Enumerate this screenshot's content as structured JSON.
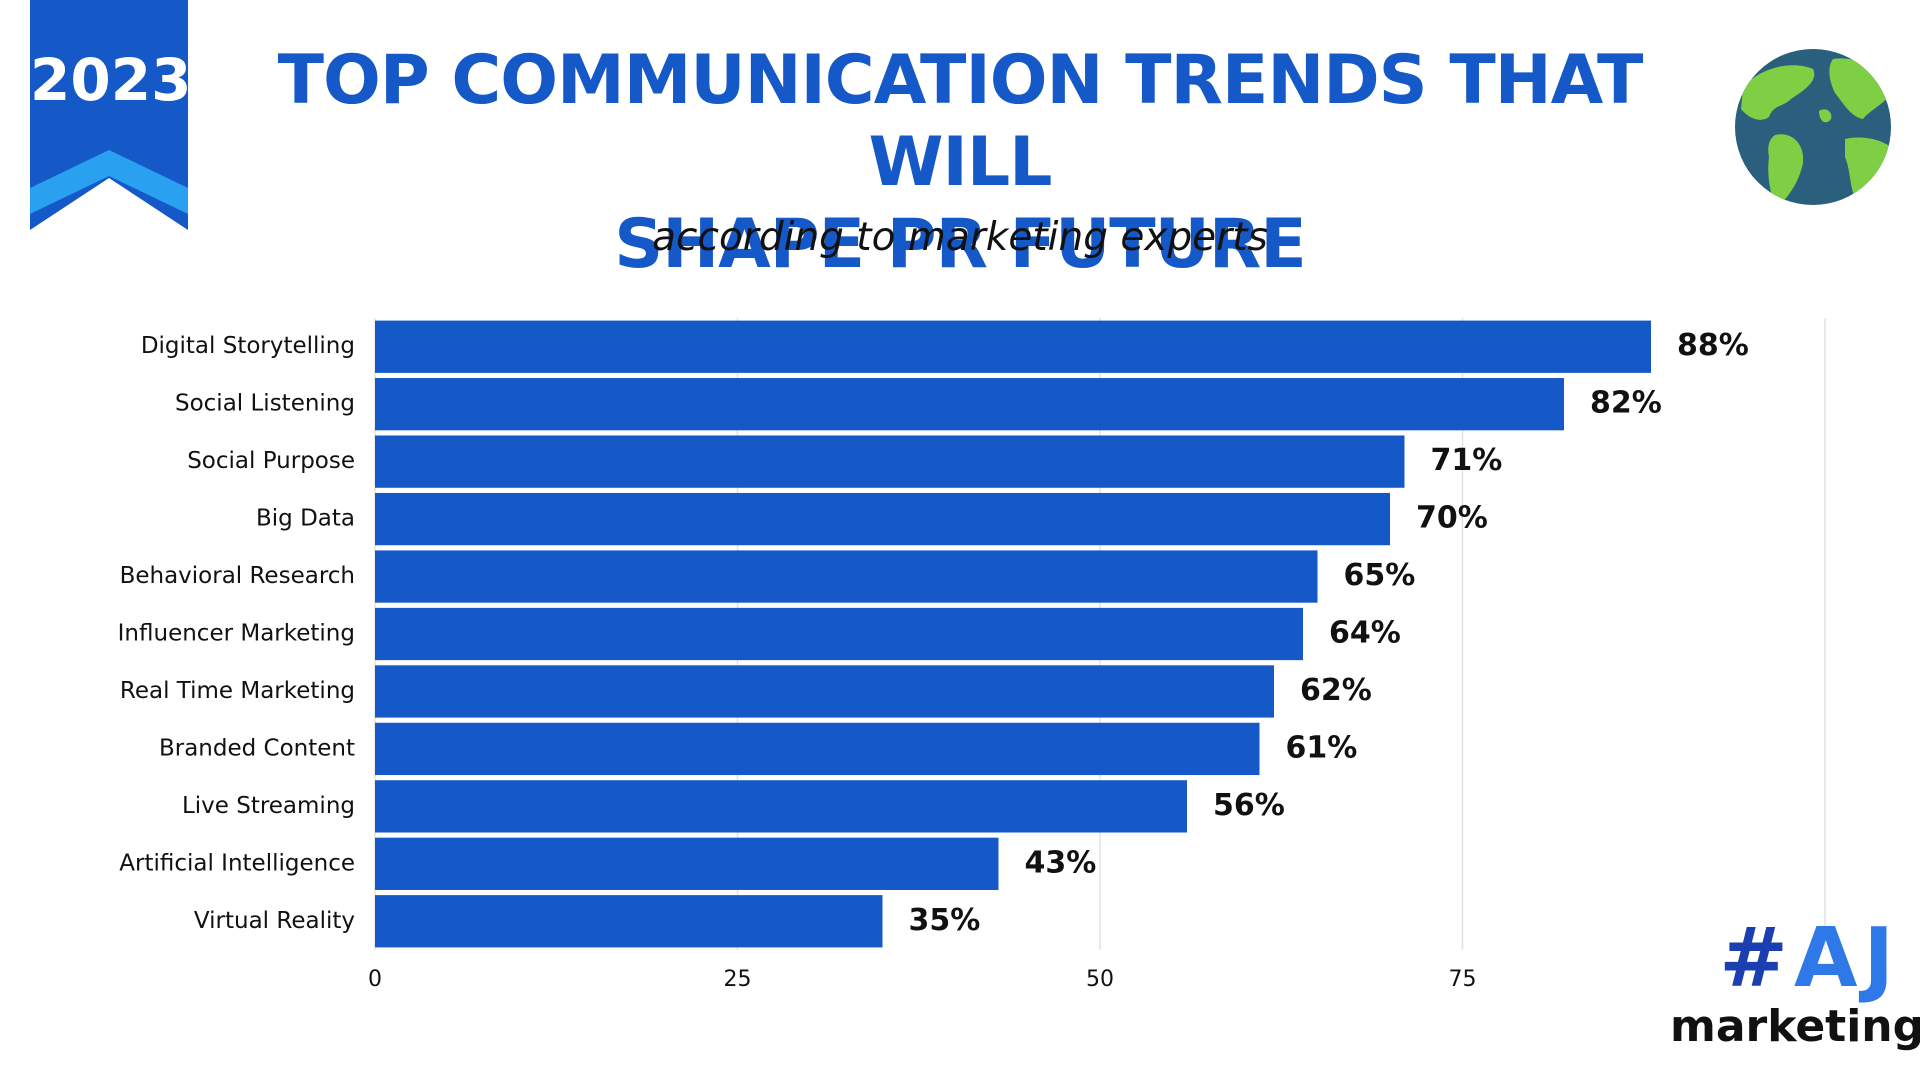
{
  "header": {
    "year_badge": "2023",
    "title_line1": "TOP COMMUNICATION TRENDS THAT WILL",
    "title_line2": "SHAPE PR FUTURE",
    "subtitle": "according to marketing experts"
  },
  "logo": {
    "mark_hash": "#",
    "mark_letters": "AJ",
    "word": "marketing"
  },
  "colors": {
    "bar": "#1558c7",
    "title": "#1558c7",
    "ribbon_dark": "#1558c7",
    "ribbon_light": "#2aa0f0",
    "grid": "#e3e3e3"
  },
  "icons": [
    "globe-icon"
  ],
  "chart_data": {
    "type": "bar",
    "orientation": "horizontal",
    "title": "TOP COMMUNICATION TRENDS THAT WILL SHAPE PR FUTURE",
    "subtitle": "according to marketing experts",
    "categories": [
      "Digital Storytelling",
      "Social Listening",
      "Social Purpose",
      "Big Data",
      "Behavioral Research",
      "Influencer Marketing",
      "Real Time Marketing",
      "Branded Content",
      "Live Streaming",
      "Artificial Intelligence",
      "Virtual Reality"
    ],
    "values": [
      88,
      82,
      71,
      70,
      65,
      64,
      62,
      61,
      56,
      43,
      35
    ],
    "value_labels": [
      "88%",
      "82%",
      "71%",
      "70%",
      "65%",
      "64%",
      "62%",
      "61%",
      "56%",
      "43%",
      "35%"
    ],
    "xticks": [
      "0",
      "25",
      "50",
      "75"
    ],
    "xtick_values": [
      0,
      25,
      50,
      75
    ],
    "xlim": [
      0,
      100
    ],
    "xlabel": "",
    "ylabel": "",
    "grid": "vertical",
    "legend": "none"
  }
}
